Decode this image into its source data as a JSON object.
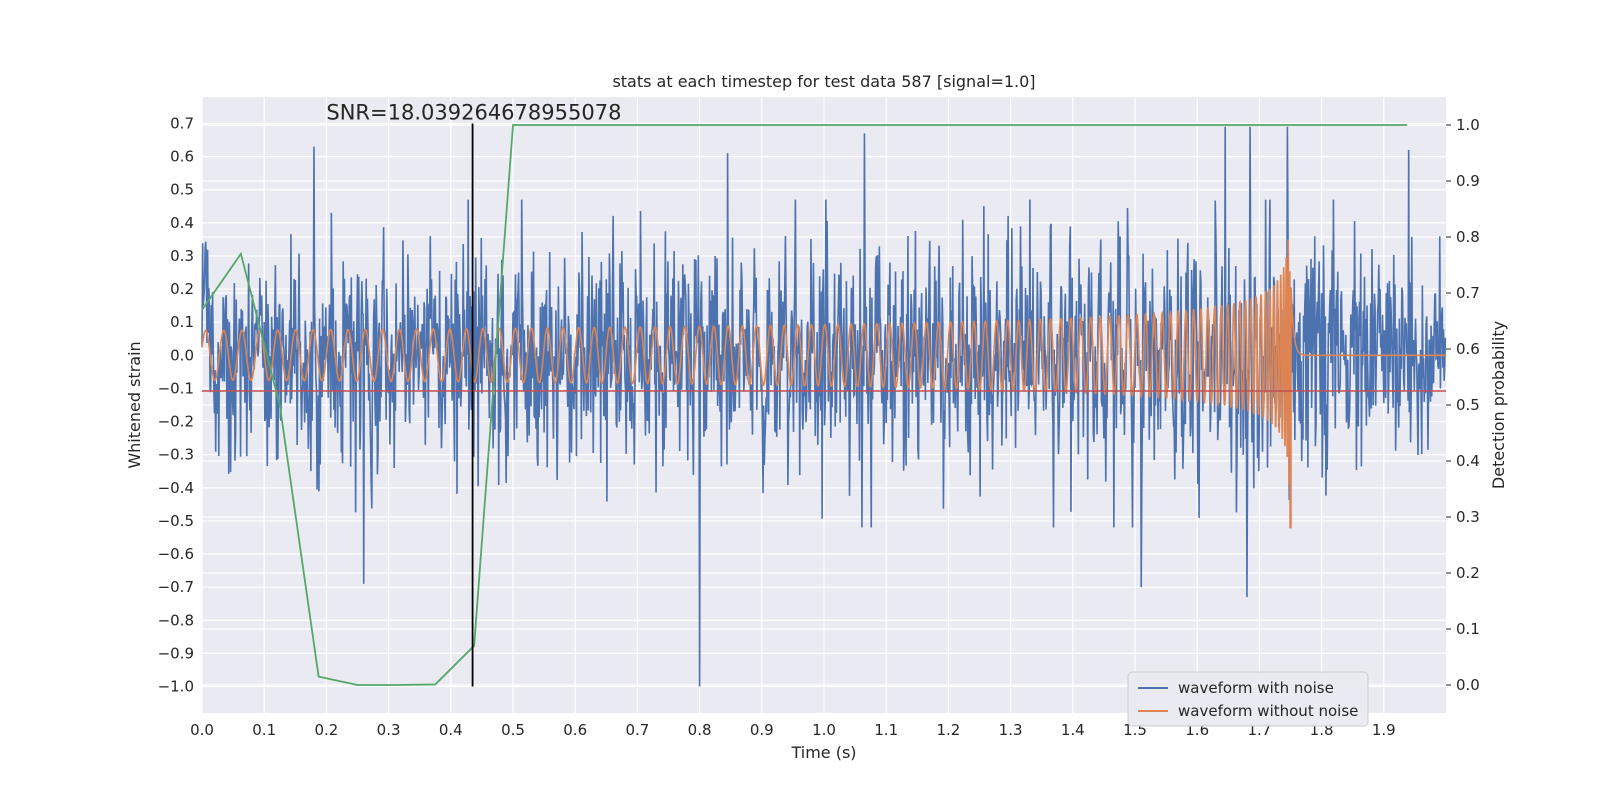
{
  "chart_data": {
    "type": "line",
    "title": "stats at each timestep for test data 587 [signal=1.0]",
    "xlabel": "Time (s)",
    "ylabel": "Whitened strain",
    "y2label": "Detection probability",
    "xlim": [
      0.0,
      2.0
    ],
    "ylim": [
      -1.08,
      0.78
    ],
    "y2lim": [
      -0.05,
      1.05
    ],
    "xticks": [
      0.0,
      0.1,
      0.2,
      0.3,
      0.4,
      0.5,
      0.6,
      0.7,
      0.8,
      0.9,
      1.0,
      1.1,
      1.2,
      1.3,
      1.4,
      1.5,
      1.6,
      1.7,
      1.8,
      1.9
    ],
    "xtick_labels": [
      "0.0",
      "0.1",
      "0.2",
      "0.3",
      "0.4",
      "0.5",
      "0.6",
      "0.7",
      "0.8",
      "0.9",
      "1.0",
      "1.1",
      "1.2",
      "1.3",
      "1.4",
      "1.5",
      "1.6",
      "1.7",
      "1.8",
      "1.9"
    ],
    "yticks": [
      0.7,
      0.6,
      0.5,
      0.4,
      0.3,
      0.2,
      0.1,
      0.0,
      -0.1,
      -0.2,
      -0.3,
      -0.4,
      -0.5,
      -0.6,
      -0.7,
      -0.8,
      -0.9,
      -1.0
    ],
    "ytick_labels": [
      "0.7",
      "0.6",
      "0.5",
      "0.4",
      "0.3",
      "0.2",
      "0.1",
      "0.0",
      "−0.1",
      "−0.2",
      "−0.3",
      "−0.4",
      "−0.5",
      "−0.6",
      "−0.7",
      "−0.8",
      "−0.9",
      "−1.0"
    ],
    "y2ticks": [
      1.0,
      0.9,
      0.8,
      0.7,
      0.6,
      0.5,
      0.4,
      0.3,
      0.2,
      0.1,
      0.0
    ],
    "y2tick_labels": [
      "1.0",
      "0.9",
      "0.8",
      "0.7",
      "0.6",
      "0.5",
      "0.4",
      "0.3",
      "0.2",
      "0.1",
      "0.0"
    ],
    "grid": true,
    "legend_placement": "lower-right",
    "annotation": "SNR=18.039264678955078",
    "threshold_line_y": 0.525,
    "marker_line": {
      "x": 0.435,
      "y_from": -1.0,
      "y_to": 0.7
    },
    "series": [
      {
        "name": "waveform with noise",
        "color": "#4c72b0",
        "kind": "noise",
        "x_range": [
          0.0,
          2.0
        ],
        "amplitude_note_values": {
          "typical_max": 0.45,
          "typical_min": -0.45
        },
        "peaks": [
          {
            "x": 0.18,
            "y": 0.63
          },
          {
            "x": 0.8,
            "y": -1.0
          },
          {
            "x": 0.845,
            "y": 0.61
          },
          {
            "x": 1.065,
            "y": 0.67
          },
          {
            "x": 1.645,
            "y": 0.69
          },
          {
            "x": 1.745,
            "y": 0.69
          },
          {
            "x": 1.94,
            "y": 0.62
          },
          {
            "x": 0.26,
            "y": -0.69
          },
          {
            "x": 1.51,
            "y": -0.7
          },
          {
            "x": 1.68,
            "y": -0.73
          },
          {
            "x": 1.685,
            "y": 0.69
          }
        ]
      },
      {
        "name": "waveform without noise",
        "color": "#dd8452",
        "kind": "chirp",
        "x_range": [
          0.0,
          2.0
        ],
        "merger_time": 1.75,
        "start_amplitude": 0.075,
        "peak_max": 0.46,
        "peak_min": -0.52,
        "start_frequency_hz": 34
      },
      {
        "name": "detection probability",
        "color": "#55a868",
        "axis": "right",
        "x": [
          0.0,
          0.0625,
          0.125,
          0.1875,
          0.25,
          0.3125,
          0.375,
          0.4375,
          0.5,
          1.9375
        ],
        "values": [
          0.67,
          0.77,
          0.5,
          0.015,
          0.0,
          0.0,
          0.001,
          0.07,
          1.0,
          1.0
        ]
      },
      {
        "name": "threshold",
        "color": "#c44e52",
        "y": 0.525
      }
    ],
    "legend": [
      "waveform with noise",
      "waveform without noise"
    ]
  }
}
